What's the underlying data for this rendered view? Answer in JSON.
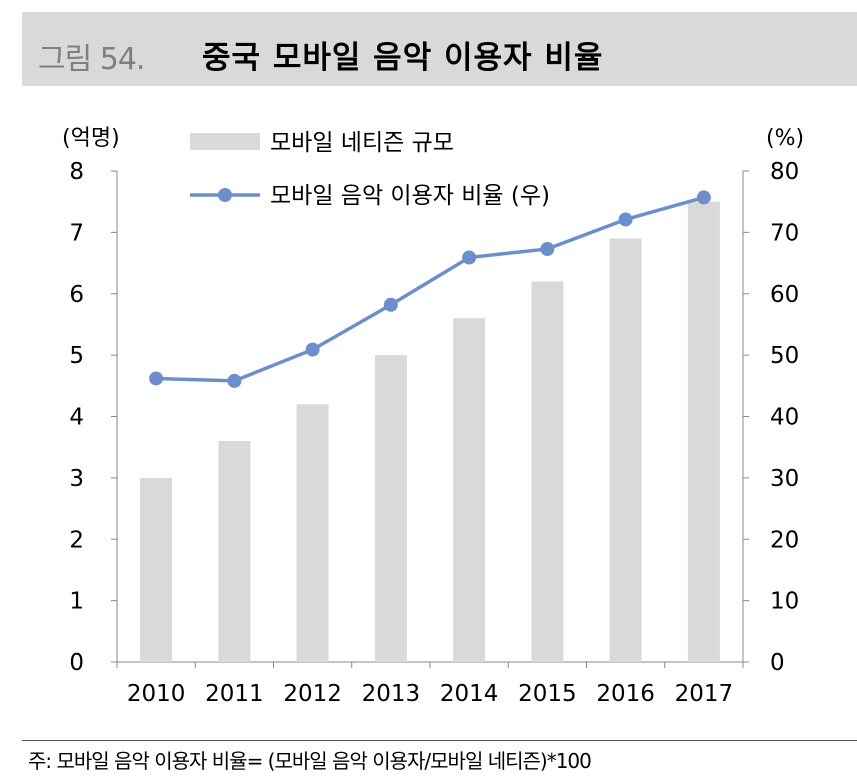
{
  "header": {
    "figure_label": "그림 54.",
    "title": "중국 모바일 음악 이용자 비율"
  },
  "chart_data": {
    "type": "bar",
    "categories": [
      "2010",
      "2011",
      "2012",
      "2013",
      "2014",
      "2015",
      "2016",
      "2017"
    ],
    "series": [
      {
        "name": "모바일 네티즌 규모",
        "type": "bar",
        "axis": "left",
        "values": [
          3.0,
          3.6,
          4.2,
          5.0,
          5.6,
          6.2,
          6.9,
          7.5
        ],
        "color": "#d9d9d9"
      },
      {
        "name": "모바일 음악 이용자 비율 (우)",
        "type": "line",
        "axis": "right",
        "values": [
          46.2,
          45.8,
          50.9,
          58.2,
          65.9,
          67.3,
          72.1,
          75.7
        ],
        "color": "#6c8fcb"
      }
    ],
    "ylabel_left": "(억명)",
    "ylabel_right": "(%)",
    "ylim_left": [
      0,
      8
    ],
    "ylim_right": [
      0,
      80
    ],
    "yticks_left": [
      "0",
      "1",
      "2",
      "3",
      "4",
      "5",
      "6",
      "7",
      "8"
    ],
    "yticks_right": [
      "0",
      "10",
      "20",
      "30",
      "40",
      "50",
      "60",
      "70",
      "80"
    ],
    "grid": false,
    "legend_position": "top-left"
  },
  "footer": {
    "note": "주: 모바일 음악 이용자 비율= (모바일 음악 이용자/모바일 네티즌)*100"
  }
}
